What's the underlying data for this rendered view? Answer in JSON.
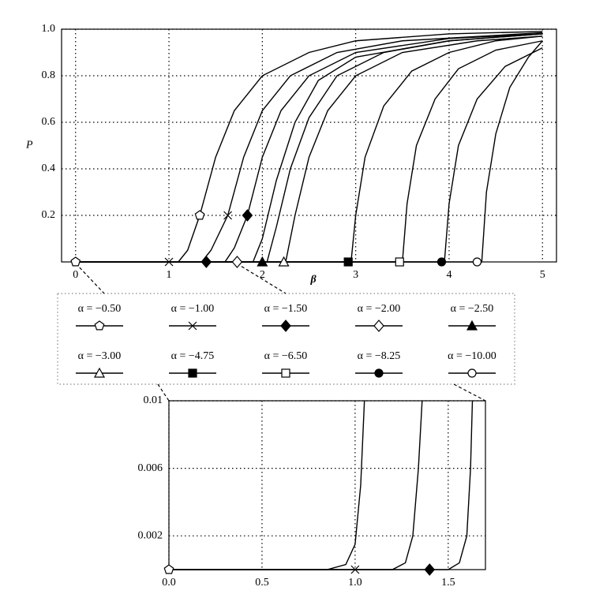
{
  "chart_data": [
    {
      "type": "line",
      "xlabel": "β",
      "ylabel": "P",
      "grid": true,
      "legend": true,
      "xlim": [
        -0.15,
        5.15
      ],
      "ylim": [
        0,
        1
      ],
      "xticks": [
        0,
        1,
        2,
        3,
        4,
        5
      ],
      "yticks": [
        0.2,
        0.4,
        0.6,
        0.8,
        {
          "value": 1,
          "label": "1.0"
        }
      ],
      "series": [
        {
          "name": "α = −0.50",
          "marker": "pentagon-open",
          "color": "#000000",
          "x": [
            0,
            1.1,
            1.2,
            1.33,
            1.5,
            1.7,
            2.0,
            2.5,
            3,
            4,
            5
          ],
          "values": [
            0,
            0,
            0.05,
            0.2,
            0.45,
            0.65,
            0.8,
            0.9,
            0.95,
            0.98,
            0.99
          ],
          "markers": {
            "x": [
              0,
              1.33
            ],
            "values": [
              0,
              0.2
            ]
          }
        },
        {
          "name": "α = −1.00",
          "marker": "cross",
          "color": "#000000",
          "x": [
            0,
            1.35,
            1.45,
            1.63,
            1.8,
            2.0,
            2.3,
            2.8,
            3.5,
            5
          ],
          "values": [
            0,
            0,
            0.05,
            0.2,
            0.45,
            0.65,
            0.8,
            0.9,
            0.95,
            0.985
          ],
          "markers": {
            "x": [
              1.0,
              1.63
            ],
            "values": [
              0,
              0.2
            ]
          }
        },
        {
          "name": "α = −1.50",
          "marker": "diamond-filled",
          "color": "#000000",
          "x": [
            0,
            1.6,
            1.7,
            1.84,
            2.0,
            2.2,
            2.5,
            3,
            4,
            5
          ],
          "values": [
            0,
            0,
            0.06,
            0.2,
            0.45,
            0.65,
            0.8,
            0.9,
            0.96,
            0.98
          ],
          "markers": {
            "x": [
              1.4,
              1.84
            ],
            "values": [
              0,
              0.2
            ]
          }
        },
        {
          "name": "α = −2.00",
          "marker": "diamond-open",
          "color": "#000000",
          "x": [
            0,
            1.9,
            2.0,
            2.15,
            2.35,
            2.6,
            3,
            4,
            5
          ],
          "values": [
            0,
            0,
            0.1,
            0.35,
            0.6,
            0.78,
            0.88,
            0.95,
            0.98
          ],
          "markers": {
            "x": [
              1.73
            ],
            "values": [
              0
            ]
          }
        },
        {
          "name": "α = −2.50",
          "marker": "triangle-filled",
          "color": "#000000",
          "x": [
            0,
            2.05,
            2.15,
            2.3,
            2.5,
            2.8,
            3.3,
            4,
            5
          ],
          "values": [
            0,
            0,
            0.15,
            0.4,
            0.62,
            0.8,
            0.9,
            0.95,
            0.98
          ],
          "markers": {
            "x": [
              2.0
            ],
            "values": [
              0
            ]
          }
        },
        {
          "name": "α = −3.00",
          "marker": "triangle-open",
          "color": "#000000",
          "x": [
            0,
            2.25,
            2.35,
            2.5,
            2.7,
            3,
            3.5,
            4.3,
            5
          ],
          "values": [
            0,
            0,
            0.2,
            0.45,
            0.65,
            0.8,
            0.9,
            0.95,
            0.97
          ],
          "markers": {
            "x": [
              2.23
            ],
            "values": [
              0
            ]
          }
        },
        {
          "name": "α = −4.75",
          "marker": "square-filled",
          "color": "#000000",
          "x": [
            0,
            2.95,
            3.0,
            3.1,
            3.3,
            3.6,
            4,
            4.5,
            5
          ],
          "values": [
            0,
            0,
            0.2,
            0.45,
            0.67,
            0.82,
            0.9,
            0.95,
            0.97
          ],
          "markers": {
            "x": [
              2.92
            ],
            "values": [
              0
            ]
          }
        },
        {
          "name": "α = −6.50",
          "marker": "square-open",
          "color": "#000000",
          "x": [
            0,
            3.5,
            3.55,
            3.65,
            3.85,
            4.1,
            4.5,
            5
          ],
          "values": [
            0,
            0,
            0.25,
            0.5,
            0.7,
            0.83,
            0.91,
            0.95
          ],
          "markers": {
            "x": [
              3.47
            ],
            "values": [
              0
            ]
          }
        },
        {
          "name": "α = −8.25",
          "marker": "circle-filled",
          "color": "#000000",
          "x": [
            0,
            3.95,
            4.0,
            4.1,
            4.3,
            4.6,
            5
          ],
          "values": [
            0,
            0,
            0.25,
            0.5,
            0.7,
            0.84,
            0.92
          ],
          "markers": {
            "x": [
              3.92
            ],
            "values": [
              0
            ]
          }
        },
        {
          "name": "α = −10.00",
          "marker": "circle-open",
          "color": "#000000",
          "x": [
            0,
            4.35,
            4.4,
            4.5,
            4.65,
            4.85,
            5
          ],
          "values": [
            0,
            0,
            0.3,
            0.55,
            0.75,
            0.88,
            0.95
          ],
          "markers": {
            "x": [
              4.3
            ],
            "values": [
              0
            ]
          }
        }
      ]
    },
    {
      "type": "line",
      "grid": true,
      "xlim": [
        0,
        1.7
      ],
      "ylim": [
        0,
        0.01
      ],
      "xticks": [
        {
          "value": 0,
          "label": "0.0"
        },
        0.5,
        {
          "value": 1,
          "label": "1.0"
        },
        1.5
      ],
      "yticks": [
        0.002,
        0.006,
        0.01
      ],
      "series": [
        {
          "marker": "pentagon-open",
          "color": "#000000",
          "x": [
            0,
            0.85,
            0.95,
            1.0,
            1.03,
            1.05
          ],
          "values": [
            0,
            0,
            0.0003,
            0.0015,
            0.005,
            0.01
          ],
          "markers": {
            "x": [
              0
            ],
            "values": [
              0
            ]
          }
        },
        {
          "marker": "cross",
          "color": "#000000",
          "x": [
            0,
            1.2,
            1.27,
            1.31,
            1.34,
            1.36
          ],
          "values": [
            0,
            0,
            0.0004,
            0.002,
            0.006,
            0.01
          ],
          "markers": {
            "x": [
              1.0
            ],
            "values": [
              0
            ]
          }
        },
        {
          "marker": "diamond-filled",
          "color": "#000000",
          "x": [
            0,
            1.5,
            1.56,
            1.6,
            1.62,
            1.63
          ],
          "values": [
            0,
            0,
            0.0004,
            0.002,
            0.006,
            0.01
          ],
          "markers": {
            "x": [
              1.4
            ],
            "values": [
              0
            ]
          }
        }
      ]
    }
  ]
}
